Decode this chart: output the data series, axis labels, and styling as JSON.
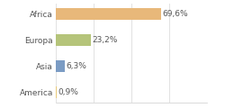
{
  "categories": [
    "America",
    "Asia",
    "Europa",
    "Africa"
  ],
  "values": [
    0.9,
    6.3,
    23.2,
    69.6
  ],
  "labels": [
    "0,9%",
    "6,3%",
    "23,2%",
    "69,6%"
  ],
  "bar_colors": [
    "#e8c97a",
    "#7b9cc4",
    "#b5c47a",
    "#e8b87a"
  ],
  "background_color": "#ffffff",
  "xlim": [
    0,
    100
  ],
  "bar_height": 0.45,
  "label_fontsize": 6.5,
  "tick_fontsize": 6.5,
  "grid_color": "#dddddd",
  "spine_color": "#cccccc",
  "text_color": "#555555"
}
